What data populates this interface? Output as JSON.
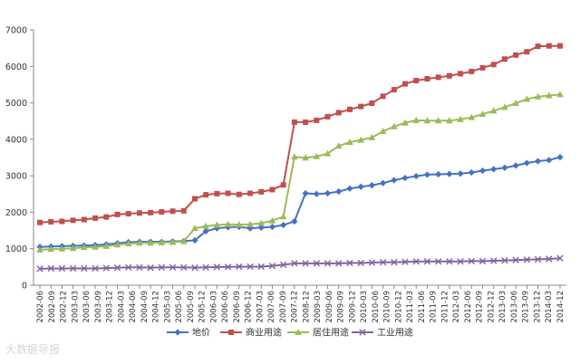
{
  "chart_data": {
    "type": "line",
    "x": [
      "2002-06",
      "2002-09",
      "2002-12",
      "2003-03",
      "2003-06",
      "2003-09",
      "2003-12",
      "2004-03",
      "2004-06",
      "2004-09",
      "2004-12",
      "2005-03",
      "2005-06",
      "2005-09",
      "2005-12",
      "2006-03",
      "2006-06",
      "2006-09",
      "2006-12",
      "2007-03",
      "2007-06",
      "2007-09",
      "2007-12",
      "2008-12",
      "2009-03",
      "2009-06",
      "2009-09",
      "2009-12",
      "2010-03",
      "2010-06",
      "2010-09",
      "2010-12",
      "2011-03",
      "2011-06",
      "2011-09",
      "2011-12",
      "2012-03",
      "2012-06",
      "2012-09",
      "2012-12",
      "2013-03",
      "2013-06",
      "2013-09",
      "2013-12",
      "2014-03",
      "2014-06",
      "2014-09",
      "2014-12"
    ],
    "x_tick_labels": [
      "2002-06",
      "2002-09",
      "2002-12",
      "2003-03",
      "2003-06",
      "2003-09",
      "2003-12",
      "2004-03",
      "2004-06",
      "2004-09",
      "2004-12",
      "2005-03",
      "2005-06",
      "2005-09",
      "2005-12",
      "2006-03",
      "2006-06",
      "2006-09",
      "2006-12",
      "2007-03",
      "2007-06",
      "2007-09",
      "2007-12",
      "2008-12",
      "2009-03",
      "2009-06",
      "2009-09",
      "2009-12",
      "2010-03",
      "2010-06",
      "2010-09",
      "2010-12",
      "2011-03",
      "2011-06",
      "2011-09",
      "2011-12",
      "2012-03",
      "2012-06",
      "2012-09",
      "2012-12",
      "2013-03",
      "2013-06",
      "2013-09",
      "2013-12",
      "2014-03",
      "2014-12"
    ],
    "ylim": [
      0,
      7000
    ],
    "yticks": [
      0,
      1000,
      2000,
      3000,
      4000,
      5000,
      6000,
      7000
    ],
    "grid": false,
    "legend_position": "bottom",
    "series": [
      {
        "name": "地价",
        "color": "#4472C4",
        "marker": "diamond",
        "values": [
          1050,
          1060,
          1070,
          1080,
          1090,
          1100,
          1120,
          1150,
          1180,
          1190,
          1190,
          1190,
          1200,
          1210,
          1230,
          1480,
          1560,
          1590,
          1600,
          1560,
          1580,
          1600,
          1650,
          1750,
          2520,
          2500,
          2520,
          2570,
          2650,
          2700,
          2740,
          2800,
          2880,
          2940,
          2990,
          3030,
          3040,
          3050,
          3060,
          3090,
          3140,
          3180,
          3220,
          3280,
          3350,
          3400,
          3430,
          3510
        ]
      },
      {
        "name": "商业用途",
        "color": "#C0504D",
        "marker": "square",
        "values": [
          1720,
          1740,
          1750,
          1780,
          1800,
          1840,
          1870,
          1940,
          1960,
          1980,
          1990,
          2010,
          2030,
          2040,
          2370,
          2480,
          2510,
          2520,
          2490,
          2520,
          2560,
          2620,
          2750,
          4470,
          4470,
          4520,
          4620,
          4730,
          4820,
          4900,
          4990,
          5180,
          5360,
          5520,
          5610,
          5660,
          5700,
          5740,
          5800,
          5860,
          5960,
          6050,
          6200,
          6310,
          6400,
          6550,
          6560,
          6560
        ]
      },
      {
        "name": "居住用途",
        "color": "#9BBB59",
        "marker": "triangle",
        "values": [
          970,
          990,
          1000,
          1010,
          1040,
          1050,
          1070,
          1110,
          1140,
          1160,
          1160,
          1170,
          1180,
          1200,
          1560,
          1620,
          1650,
          1670,
          1660,
          1670,
          1700,
          1770,
          1880,
          3520,
          3490,
          3530,
          3610,
          3820,
          3920,
          3980,
          4050,
          4220,
          4350,
          4450,
          4520,
          4510,
          4510,
          4510,
          4550,
          4600,
          4690,
          4780,
          4880,
          4990,
          5100,
          5170,
          5200,
          5230
        ]
      },
      {
        "name": "工业用途",
        "color": "#8064A2",
        "marker": "x",
        "values": [
          450,
          460,
          460,
          460,
          460,
          460,
          470,
          480,
          490,
          490,
          480,
          490,
          490,
          490,
          480,
          490,
          500,
          500,
          510,
          510,
          510,
          530,
          560,
          600,
          600,
          600,
          600,
          600,
          610,
          610,
          620,
          630,
          630,
          640,
          650,
          650,
          650,
          650,
          650,
          660,
          660,
          670,
          680,
          690,
          700,
          710,
          720,
          740
        ]
      }
    ]
  },
  "watermark": "大数据导报"
}
